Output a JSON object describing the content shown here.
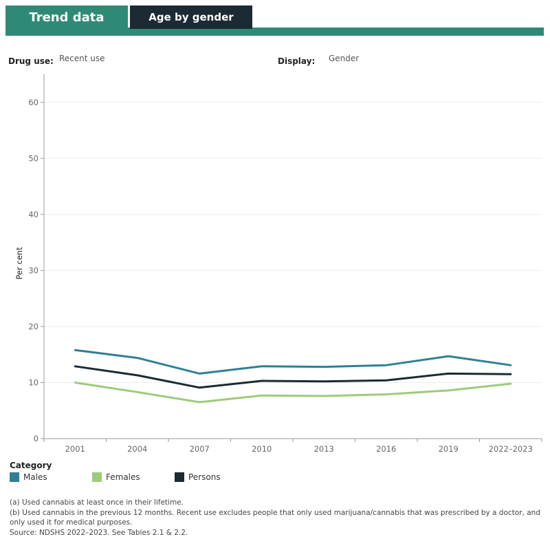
{
  "tabs": [
    {
      "label": "Trend data"
    },
    {
      "label": "Age by gender"
    }
  ],
  "filters": {
    "drug_use": {
      "label": "Drug use:",
      "value": "Recent use"
    },
    "display": {
      "label": "Display:",
      "value": "Gender"
    }
  },
  "legend": {
    "title": "Category"
  },
  "notes": {
    "a": "(a) Used cannabis at least once in their lifetime.",
    "b": "(b) Used cannabis in the previous 12 months. Recent use excludes people that only used marijuana/cannabis that was prescribed by a doctor, and only used it for medical purposes.",
    "source": "Source: NDSHS 2022–2023. See Tables 2.1 & 2.2."
  },
  "colors": {
    "tab_active": "#2e8a75",
    "tab_dark": "#1b2a33"
  },
  "chart_data": {
    "type": "line",
    "title": "",
    "xlabel": "",
    "ylabel": "Per cent",
    "ylim": [
      0,
      65
    ],
    "yticks": [
      0,
      10,
      20,
      30,
      40,
      50,
      60
    ],
    "grid": true,
    "legend_position": "bottom-left",
    "categories": [
      "2001",
      "2004",
      "2007",
      "2010",
      "2013",
      "2016",
      "2019",
      "2022–2023"
    ],
    "series": [
      {
        "name": "Males",
        "color": "#2f7f94",
        "values": [
          15.8,
          14.4,
          11.6,
          12.9,
          12.8,
          13.1,
          14.7,
          13.1
        ]
      },
      {
        "name": "Females",
        "color": "#9ccb7a",
        "values": [
          10.0,
          8.3,
          6.5,
          7.7,
          7.6,
          7.9,
          8.6,
          9.8
        ]
      },
      {
        "name": "Persons",
        "color": "#1b2a33",
        "values": [
          12.9,
          11.3,
          9.1,
          10.3,
          10.2,
          10.4,
          11.6,
          11.5
        ]
      }
    ]
  }
}
